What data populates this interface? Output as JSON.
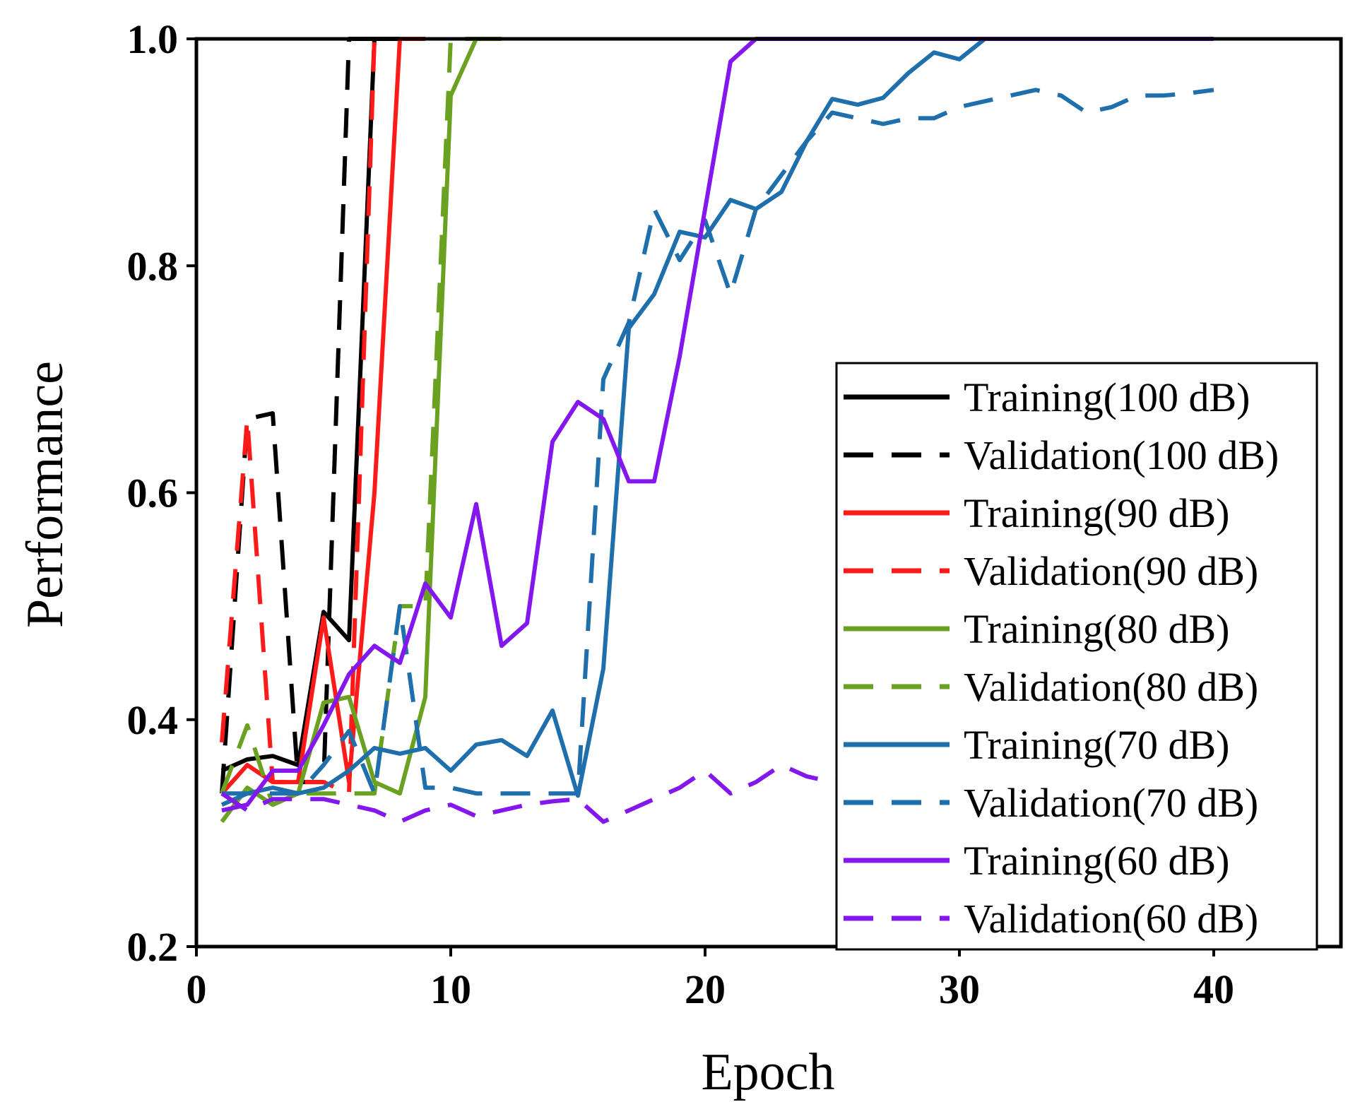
{
  "chart_data": {
    "type": "line",
    "title": "",
    "xlabel": "Epoch",
    "ylabel": "Performance",
    "xlim": [
      0,
      45
    ],
    "ylim": [
      0.2,
      1.0
    ],
    "xticks": [
      0,
      10,
      20,
      30,
      40
    ],
    "yticks": [
      0.2,
      0.4,
      0.6,
      0.8,
      1.0
    ],
    "xtick_labels": [
      "0",
      "10",
      "20",
      "30",
      "40"
    ],
    "ytick_labels": [
      "0.2",
      "0.4",
      "0.6",
      "0.8",
      "1.0"
    ],
    "grid": false,
    "legend_position": "bottom-right",
    "series": [
      {
        "name": "Training(100 dB)",
        "color": "#000000",
        "dash": "solid",
        "x": [
          1,
          2,
          3,
          4,
          5,
          6,
          7,
          8
        ],
        "y": [
          0.355,
          0.365,
          0.368,
          0.36,
          0.495,
          0.47,
          1.0,
          1.0
        ]
      },
      {
        "name": "Validation(100 dB)",
        "color": "#000000",
        "dash": "dashed",
        "x": [
          1,
          2,
          3,
          4,
          5,
          6,
          7
        ],
        "y": [
          0.335,
          0.665,
          0.67,
          0.345,
          0.345,
          1.0,
          1.0
        ]
      },
      {
        "name": "Training(90 dB)",
        "color": "#ff1a1a",
        "dash": "solid",
        "x": [
          1,
          2,
          3,
          4,
          5,
          6,
          7,
          8,
          9
        ],
        "y": [
          0.335,
          0.36,
          0.345,
          0.345,
          0.49,
          0.345,
          0.6,
          1.0,
          1.0
        ]
      },
      {
        "name": "Validation(90 dB)",
        "color": "#ff1a1a",
        "dash": "dashed",
        "x": [
          1,
          2,
          3,
          4,
          5,
          6,
          7
        ],
        "y": [
          0.38,
          0.665,
          0.345,
          0.345,
          0.345,
          0.335,
          1.0
        ]
      },
      {
        "name": "Training(80 dB)",
        "color": "#6aa121",
        "dash": "solid",
        "x": [
          1,
          2,
          3,
          4,
          5,
          6,
          7,
          8,
          9,
          10,
          11,
          12
        ],
        "y": [
          0.31,
          0.34,
          0.325,
          0.335,
          0.415,
          0.42,
          0.345,
          0.335,
          0.42,
          0.95,
          1.0,
          1.0
        ]
      },
      {
        "name": "Validation(80 dB)",
        "color": "#6aa121",
        "dash": "dashed",
        "x": [
          1,
          2,
          3,
          4,
          5,
          6,
          7,
          8,
          9,
          10,
          11
        ],
        "y": [
          0.335,
          0.395,
          0.325,
          0.335,
          0.335,
          0.335,
          0.335,
          0.5,
          0.5,
          1.0,
          1.0
        ]
      },
      {
        "name": "Training(70 dB)",
        "color": "#1f6fad",
        "dash": "solid",
        "x": [
          1,
          2,
          3,
          4,
          5,
          6,
          7,
          8,
          9,
          10,
          11,
          12,
          13,
          14,
          15,
          16,
          17,
          18,
          19,
          20,
          21,
          22,
          23,
          24,
          25,
          26,
          27,
          28,
          29,
          30,
          31,
          32,
          33,
          34,
          35,
          36,
          37,
          38,
          39,
          40
        ],
        "y": [
          0.325,
          0.335,
          0.34,
          0.335,
          0.34,
          0.355,
          0.375,
          0.37,
          0.375,
          0.355,
          0.378,
          0.382,
          0.368,
          0.408,
          0.333,
          0.445,
          0.745,
          0.775,
          0.83,
          0.825,
          0.858,
          0.85,
          0.865,
          0.91,
          0.947,
          0.942,
          0.948,
          0.97,
          0.988,
          0.982,
          1.0,
          1.0,
          1.0,
          1.0,
          1.0,
          1.0,
          1.0,
          1.0,
          1.0,
          1.0
        ]
      },
      {
        "name": "Validation(70 dB)",
        "color": "#1f6fad",
        "dash": "dashed",
        "x": [
          1,
          2,
          3,
          4,
          5,
          6,
          7,
          8,
          9,
          10,
          11,
          12,
          13,
          14,
          15,
          16,
          17,
          18,
          19,
          20,
          21,
          22,
          23,
          24,
          25,
          26,
          27,
          28,
          29,
          30,
          31,
          32,
          33,
          34,
          35,
          36,
          37,
          38,
          39,
          40
        ],
        "y": [
          0.335,
          0.335,
          0.335,
          0.335,
          0.36,
          0.39,
          0.335,
          0.5,
          0.34,
          0.34,
          0.335,
          0.335,
          0.335,
          0.335,
          0.335,
          0.7,
          0.75,
          0.85,
          0.805,
          0.84,
          0.775,
          0.85,
          0.88,
          0.91,
          0.935,
          0.93,
          0.925,
          0.93,
          0.93,
          0.94,
          0.945,
          0.95,
          0.955,
          0.95,
          0.935,
          0.94,
          0.95,
          0.95,
          0.952,
          0.955
        ]
      },
      {
        "name": "Training(60 dB)",
        "color": "#8317ee",
        "dash": "solid",
        "x": [
          1,
          2,
          3,
          4,
          5,
          6,
          7,
          8,
          9,
          10,
          11,
          12,
          13,
          14,
          15,
          16,
          17,
          18,
          19,
          20,
          21,
          22,
          23,
          24,
          25,
          26,
          27,
          28,
          29,
          30,
          31,
          32,
          33,
          34,
          35,
          36,
          37,
          38,
          39,
          40
        ],
        "y": [
          0.32,
          0.325,
          0.355,
          0.355,
          0.395,
          0.44,
          0.465,
          0.45,
          0.52,
          0.49,
          0.59,
          0.465,
          0.485,
          0.645,
          0.68,
          0.665,
          0.61,
          0.61,
          0.72,
          0.85,
          0.98,
          1.0,
          1.0,
          1.0,
          1.0,
          1.0,
          1.0,
          1.0,
          1.0,
          1.0,
          1.0,
          1.0,
          1.0,
          1.0,
          1.0,
          1.0,
          1.0,
          1.0,
          1.0,
          1.0
        ]
      },
      {
        "name": "Validation(60 dB)",
        "color": "#8317ee",
        "dash": "dashed",
        "x": [
          1,
          2,
          3,
          4,
          5,
          6,
          7,
          8,
          9,
          10,
          11,
          12,
          13,
          14,
          15,
          16,
          17,
          18,
          19,
          20,
          21,
          22,
          23,
          24,
          25,
          26
        ],
        "y": [
          0.335,
          0.32,
          0.33,
          0.33,
          0.33,
          0.325,
          0.32,
          0.31,
          0.32,
          0.325,
          0.315,
          0.32,
          0.325,
          0.328,
          0.33,
          0.31,
          0.32,
          0.33,
          0.34,
          0.355,
          0.335,
          0.345,
          0.36,
          0.35,
          0.345,
          0.35
        ]
      }
    ]
  }
}
